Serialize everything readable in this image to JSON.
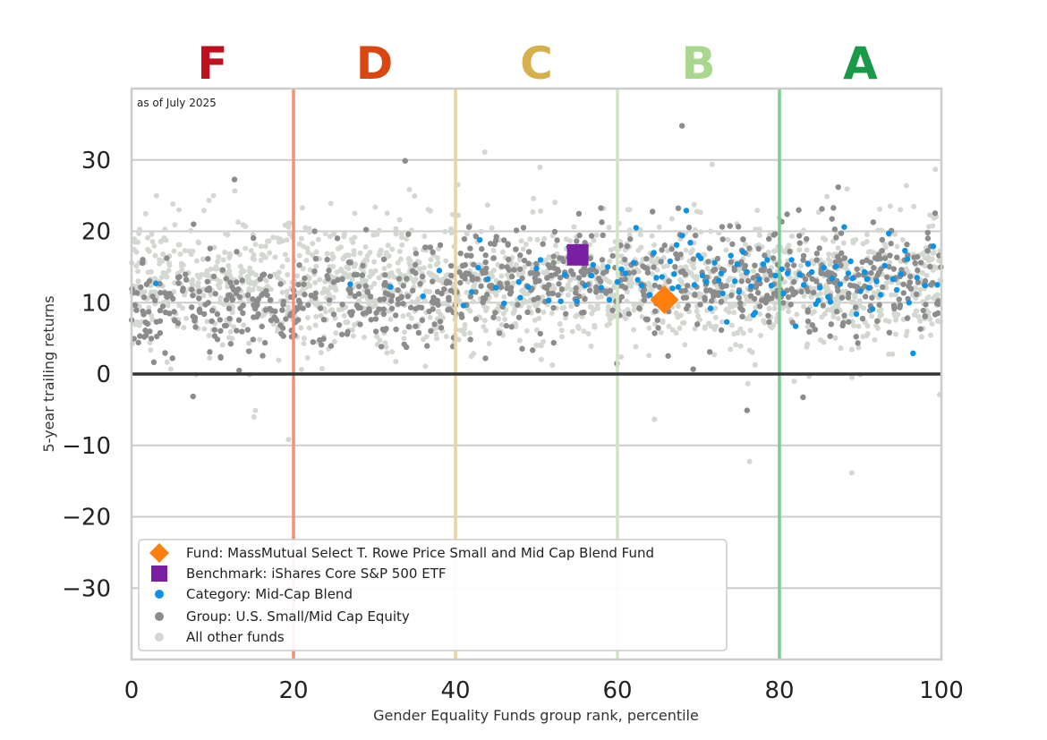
{
  "chart_data": {
    "type": "scatter",
    "annotation": "as of July 2025",
    "xlabel": "Gender Equality Funds group rank, percentile",
    "ylabel": "5-year trailing returns",
    "xlim": [
      0,
      100
    ],
    "ylim": [
      -40,
      40
    ],
    "x_ticks": [
      0,
      20,
      40,
      60,
      80,
      100
    ],
    "x_tick_labels": [
      "0",
      "20",
      "40",
      "60",
      "80",
      "100"
    ],
    "y_ticks": [
      30,
      20,
      10,
      0,
      -10,
      -20,
      -30
    ],
    "y_tick_labels": [
      "30",
      "20",
      "10",
      "0",
      "−10",
      "−20",
      "−30"
    ],
    "grid": "horizontal",
    "legend_position": "bottom-left",
    "grade_bands": [
      {
        "label": "F",
        "from": 0,
        "to": 20,
        "color": "#c0101f",
        "line_color": "#ee9177"
      },
      {
        "label": "D",
        "from": 20,
        "to": 40,
        "color": "#d9460f",
        "line_color": "#ecd4a2"
      },
      {
        "label": "C",
        "from": 40,
        "to": 60,
        "color": "#d6b04f",
        "line_color": "#cfe6c4"
      },
      {
        "label": "B",
        "from": 60,
        "to": 80,
        "color": "#a8d88e",
        "line_color": "#7ccc95"
      },
      {
        "label": "A",
        "from": 80,
        "to": 100,
        "color": "#1a9a49",
        "line_color": "#cccccc"
      }
    ],
    "zero_line": 0,
    "series": [
      {
        "name": "Fund: MassMutual Select T. Rowe Price Small and Mid Cap Blend Fund",
        "marker": "diamond",
        "color": "#ff7f0e",
        "points": [
          [
            65.8,
            10.4
          ]
        ]
      },
      {
        "name": "Benchmark: iShares Core S&P 500 ETF",
        "marker": "square",
        "color": "#7b1fa2",
        "points": [
          [
            55.1,
            16.7
          ]
        ]
      },
      {
        "name": "Category: Mid-Cap Blend",
        "marker": "dot",
        "color": "#0a93e6",
        "points": [
          [
            3,
            12.7
          ],
          [
            27,
            12.6
          ],
          [
            32,
            12.2
          ],
          [
            36,
            10.9
          ],
          [
            38,
            14.5
          ],
          [
            41,
            9.6
          ],
          [
            42,
            11.5
          ],
          [
            43,
            18.8
          ],
          [
            44,
            13.3
          ],
          [
            45,
            12.1
          ],
          [
            46,
            9.9
          ],
          [
            48,
            10.7
          ],
          [
            49,
            12.2
          ],
          [
            50,
            14.8
          ],
          [
            50.5,
            16.0
          ],
          [
            51.5,
            10.3
          ],
          [
            53,
            10.2
          ],
          [
            53.5,
            13.9
          ],
          [
            54,
            17.8
          ],
          [
            55,
            10.2
          ],
          [
            56,
            12.4
          ],
          [
            57,
            15.3
          ],
          [
            58,
            12.1
          ],
          [
            59,
            10.4
          ],
          [
            60,
            12.9
          ],
          [
            60.5,
            14.7
          ],
          [
            61,
            14.1
          ],
          [
            62,
            15.6
          ],
          [
            62.5,
            13.2
          ],
          [
            63,
            12.4
          ],
          [
            64,
            11.1
          ],
          [
            64.5,
            17.0
          ],
          [
            65,
            10.6
          ],
          [
            65.5,
            13.6
          ],
          [
            66,
            11.0
          ],
          [
            66.5,
            15.8
          ],
          [
            67,
            14.0
          ],
          [
            67.5,
            12.2
          ],
          [
            68,
            19.4
          ],
          [
            68.5,
            22.9
          ],
          [
            69,
            18.4
          ],
          [
            69.5,
            12.5
          ],
          [
            70,
            16.6
          ],
          [
            70.5,
            13.8
          ],
          [
            71,
            12.9
          ],
          [
            71.5,
            9.2
          ],
          [
            72,
            15.6
          ],
          [
            72.5,
            13.1
          ],
          [
            73,
            11.3
          ],
          [
            73.5,
            7.3
          ],
          [
            74,
            16.6
          ],
          [
            74.5,
            13.0
          ],
          [
            75,
            11.5
          ],
          [
            75.5,
            17.1
          ],
          [
            76,
            14.3
          ],
          [
            76.5,
            12.3
          ],
          [
            77,
            8.6
          ],
          [
            77.5,
            13.3
          ],
          [
            78,
            15.4
          ],
          [
            78.5,
            16.0
          ],
          [
            79,
            12.4
          ],
          [
            79.5,
            13.8
          ],
          [
            80.5,
            11.3
          ],
          [
            81,
            14.1
          ],
          [
            81.5,
            16.0
          ],
          [
            82,
            6.7
          ],
          [
            82.5,
            13.9
          ],
          [
            83,
            12.5
          ],
          [
            83.5,
            15.5
          ],
          [
            84,
            14.3
          ],
          [
            84.5,
            9.8
          ],
          [
            85,
            12.1
          ],
          [
            85.5,
            14.9
          ],
          [
            86,
            10.8
          ],
          [
            86.5,
            13.4
          ],
          [
            87,
            15.1
          ],
          [
            87.5,
            12.6
          ],
          [
            88,
            20.6
          ],
          [
            88.5,
            14.1
          ],
          [
            89,
            13.4
          ],
          [
            89.5,
            8.4
          ],
          [
            90,
            11.6
          ],
          [
            90.5,
            14.3
          ],
          [
            91,
            12.1
          ],
          [
            91.5,
            9.1
          ],
          [
            92,
            13.0
          ],
          [
            92.5,
            11.1
          ],
          [
            93,
            15.2
          ],
          [
            93.5,
            19.7
          ],
          [
            94,
            13.3
          ],
          [
            94.5,
            11.8
          ],
          [
            95,
            14.0
          ],
          [
            95.5,
            17.3
          ],
          [
            96,
            10.0
          ],
          [
            96.5,
            2.9
          ],
          [
            97,
            13.5
          ],
          [
            98,
            12.4
          ],
          [
            99,
            17.9
          ],
          [
            99.5,
            12.5
          ],
          [
            62.3,
            20.5
          ],
          [
            67.3,
            18.1
          ],
          [
            70.3,
            16.2
          ],
          [
            80.3,
            14.7
          ],
          [
            86.3,
            10.1
          ],
          [
            88.8,
            15.8
          ],
          [
            90.8,
            13.3
          ],
          [
            95.8,
            16.1
          ],
          [
            84.8,
            10.3
          ],
          [
            76.8,
            8.3
          ],
          [
            74.8,
            15.4
          ],
          [
            72.8,
            14.1
          ],
          [
            66.8,
            12.0
          ],
          [
            64.8,
            13.5
          ],
          [
            58.8,
            15.0
          ],
          [
            56.8,
            13.8
          ],
          [
            42.8,
            14.9
          ],
          [
            47.8,
            12.9
          ]
        ]
      },
      {
        "name": "Group: U.S. Small/Mid Cap Equity",
        "marker": "dot",
        "color": "#8c8c8c",
        "points": []
      },
      {
        "name": "All other funds",
        "marker": "dot",
        "color": "#d3d8d1",
        "points": []
      }
    ]
  }
}
